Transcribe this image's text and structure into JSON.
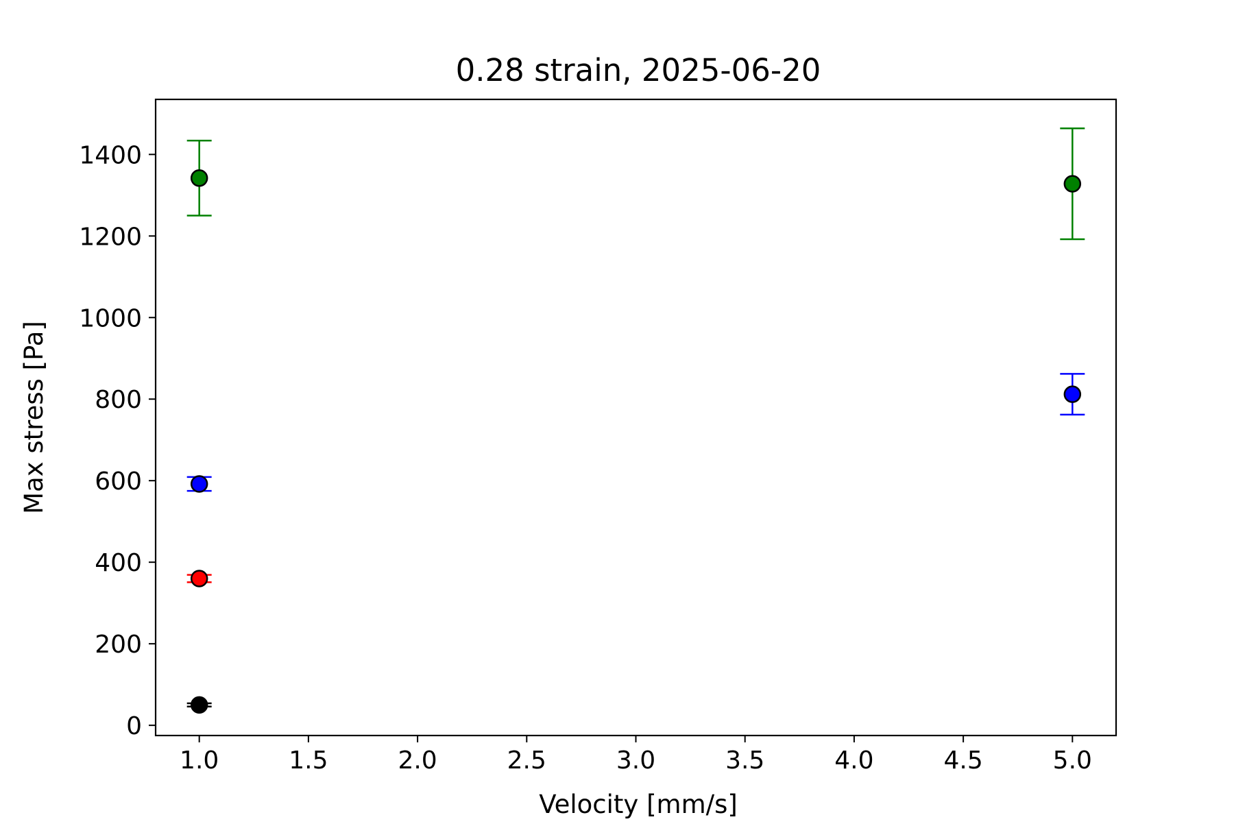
{
  "chart_data": {
    "type": "scatter",
    "title": "0.28 strain, 2025-06-20",
    "xlabel": "Velocity [mm/s]",
    "ylabel": "Max stress [Pa]",
    "xlim": [
      0.8,
      5.2
    ],
    "ylim": [
      -25,
      1535
    ],
    "xticks": [
      1.0,
      1.5,
      2.0,
      2.5,
      3.0,
      3.5,
      4.0,
      4.5,
      5.0
    ],
    "xtick_labels": [
      "1.0",
      "1.5",
      "2.0",
      "2.5",
      "3.0",
      "3.5",
      "4.0",
      "4.5",
      "5.0"
    ],
    "yticks": [
      0,
      200,
      400,
      600,
      800,
      1000,
      1200,
      1400
    ],
    "ytick_labels": [
      "0",
      "200",
      "400",
      "600",
      "800",
      "1000",
      "1200",
      "1400"
    ],
    "grid": false,
    "legend": "none",
    "marker": "circle",
    "series": [
      {
        "color": "#008000",
        "points": [
          {
            "x": 1.0,
            "y": 1342,
            "yerr": 92
          },
          {
            "x": 5.0,
            "y": 1328,
            "yerr": 136
          }
        ]
      },
      {
        "color": "#0000ff",
        "points": [
          {
            "x": 1.0,
            "y": 592,
            "yerr": 17
          },
          {
            "x": 5.0,
            "y": 812,
            "yerr": 50
          }
        ]
      },
      {
        "color": "#ff0000",
        "points": [
          {
            "x": 1.0,
            "y": 360,
            "yerr": 9
          }
        ]
      },
      {
        "color": "#000000",
        "points": [
          {
            "x": 1.0,
            "y": 50,
            "yerr": 4
          }
        ]
      }
    ]
  }
}
